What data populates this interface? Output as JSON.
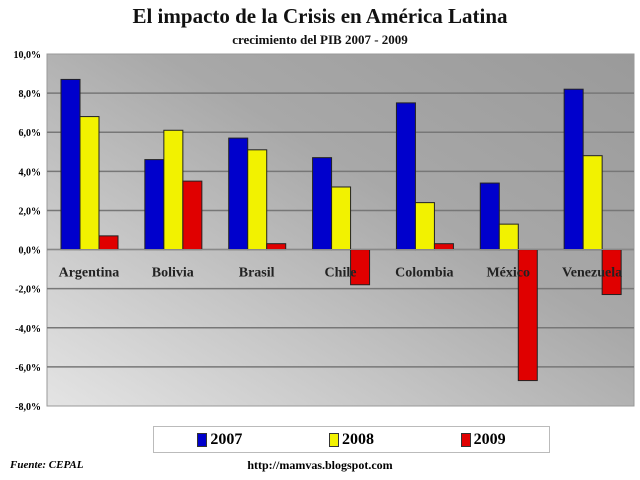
{
  "chart_data": {
    "type": "bar",
    "title": "El impacto de la Crisis en América Latina",
    "subtitle": "crecimiento del PIB 2007 - 2009",
    "categories": [
      "Argentina",
      "Bolivia",
      "Brasil",
      "Chile",
      "Colombia",
      "México",
      "Venezuela"
    ],
    "series": [
      {
        "name": "2007",
        "color": "#0000cc",
        "values": [
          8.7,
          4.6,
          5.7,
          4.7,
          7.5,
          3.4,
          8.2
        ]
      },
      {
        "name": "2008",
        "color": "#f2f200",
        "values": [
          6.8,
          6.1,
          5.1,
          3.2,
          2.4,
          1.3,
          4.8
        ]
      },
      {
        "name": "2009",
        "color": "#e00000",
        "values": [
          0.7,
          3.5,
          0.3,
          -1.8,
          0.3,
          -6.7,
          -2.3
        ]
      }
    ],
    "ylim": [
      -8,
      10
    ],
    "yticks": [
      "10,0%",
      "8,0%",
      "6,0%",
      "4,0%",
      "2,0%",
      "0,0%",
      "-2,0%",
      "-4,0%",
      "-6,0%",
      "-8,0%"
    ],
    "grid": true,
    "legend": "bottom"
  },
  "footer": {
    "source": "Fuente: CEPAL",
    "url": "http://mamvas.blogspot.com"
  }
}
